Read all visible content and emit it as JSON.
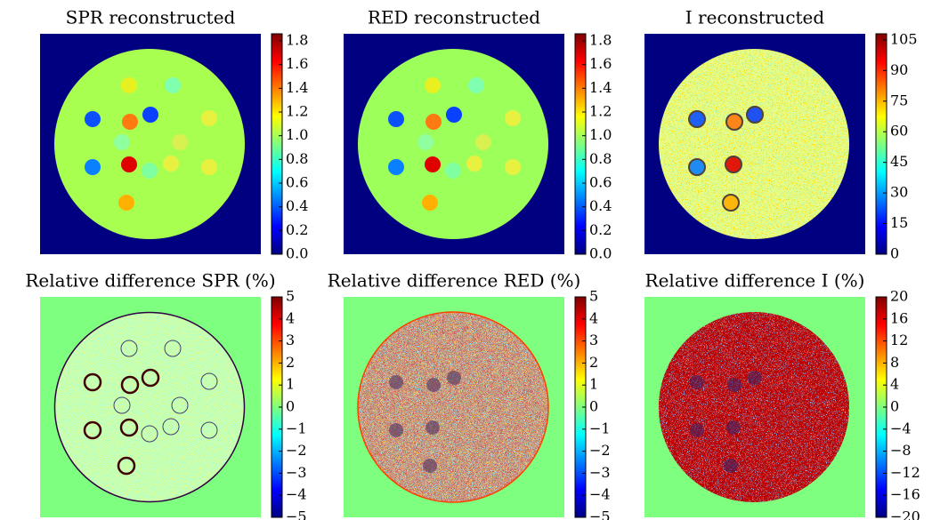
{
  "chart_data": [
    {
      "type": "image",
      "title": "SPR reconstructed",
      "clim": [
        0,
        1.86
      ],
      "cticks": [
        {
          "value": 0,
          "label": "0.0"
        },
        0.2,
        0.4,
        0.6,
        0.8,
        {
          "value": 1,
          "label": "1.0"
        },
        1.2,
        1.4,
        1.6,
        1.8
      ]
    },
    {
      "type": "image",
      "title": "RED reconstructed",
      "clim": [
        0,
        1.86
      ],
      "cticks": [
        {
          "value": 0,
          "label": "0.0"
        },
        0.2,
        0.4,
        0.6,
        0.8,
        {
          "value": 1,
          "label": "1.0"
        },
        1.2,
        1.4,
        1.6,
        1.8
      ]
    },
    {
      "type": "image",
      "title": "I reconstructed",
      "clim": [
        0,
        108
      ],
      "cticks": [
        0,
        15,
        30,
        45,
        60,
        75,
        90,
        105
      ]
    },
    {
      "type": "image",
      "title": "Relative difference SPR (%)",
      "clim": [
        -5,
        5
      ],
      "cticks": [
        {
          "value": -5,
          "label": "−5"
        },
        {
          "value": -4,
          "label": "−4"
        },
        {
          "value": -3,
          "label": "−3"
        },
        {
          "value": -2,
          "label": "−2"
        },
        {
          "value": -1,
          "label": "−1"
        },
        0,
        1,
        2,
        3,
        4,
        5
      ]
    },
    {
      "type": "image",
      "title": "Relative difference RED (%)",
      "clim": [
        -5,
        5
      ],
      "cticks": [
        {
          "value": -5,
          "label": "−5"
        },
        {
          "value": -4,
          "label": "−4"
        },
        {
          "value": -3,
          "label": "−3"
        },
        {
          "value": -2,
          "label": "−2"
        },
        {
          "value": -1,
          "label": "−1"
        },
        0,
        1,
        2,
        3,
        4,
        5
      ]
    },
    {
      "type": "image",
      "title": "Relative difference I (%)",
      "clim": [
        -20,
        20
      ],
      "cticks": [
        {
          "value": -20,
          "label": "−20"
        },
        {
          "value": -16,
          "label": "−16"
        },
        {
          "value": -12,
          "label": "−12"
        },
        {
          "value": -8,
          "label": "−8"
        },
        {
          "value": -4,
          "label": "−4"
        },
        0,
        4,
        8,
        12,
        16,
        20
      ]
    }
  ]
}
